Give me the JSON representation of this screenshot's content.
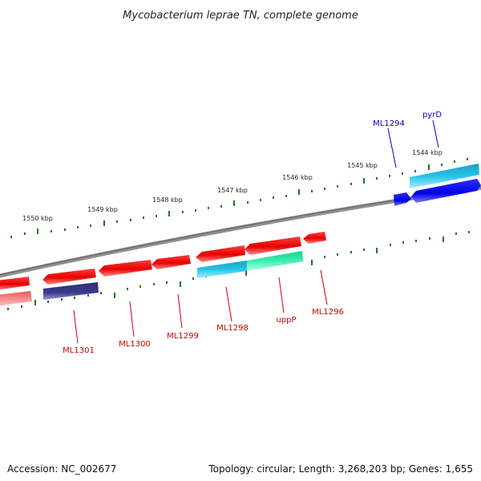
{
  "title": "Mycobacterium leprae TN, complete genome",
  "ticks": [
    "1550 kbp",
    "1549 kbp",
    "1548 kbp",
    "1547 kbp",
    "1546 kbp",
    "1545 kbp",
    "1544 kbp"
  ],
  "genes": {
    "ml1294": "ML1294",
    "pyrd": "pyrD",
    "ml1301": "ML1301",
    "ml1300": "ML1300",
    "ml1299": "ML1299",
    "ml1298": "ML1298",
    "uppp": "uppP",
    "ml1296": "ML1296"
  },
  "colors": {
    "forward_cds": "#e60000",
    "forward_cds_light": "#ff7a7a",
    "blue_cds": "#0000e6",
    "cyan_feature": "#21b6dc",
    "green_feature": "#2fe8a0",
    "purple_feature": "#3c3a8c",
    "backbone": "#808080",
    "tick_green": "#1a7a1a",
    "label_red": "#cc0000",
    "label_blue": "#0000cc"
  },
  "footer": {
    "accession": "Accession: NC_002677",
    "topology": "Topology: circular; Length: 3,268,203 bp; Genes: 1,655"
  }
}
